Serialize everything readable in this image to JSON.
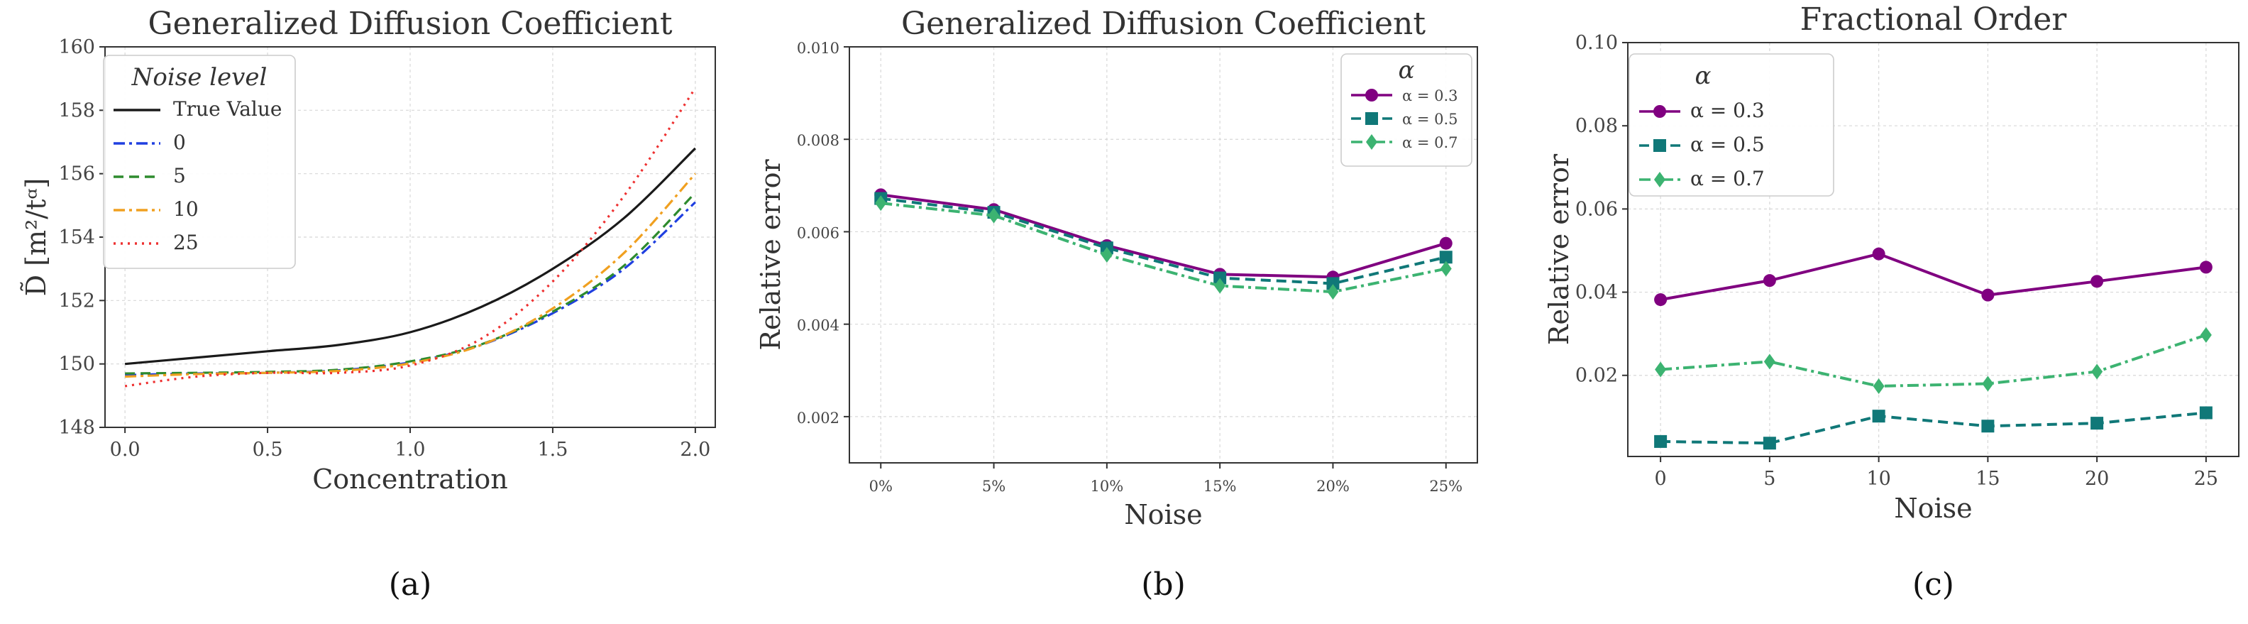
{
  "chart_data": [
    {
      "type": "line",
      "panel_label": "(a)",
      "title": "Generalized Diffusion Coefficient",
      "xlabel": "Concentration",
      "ylabel": "D̃ [m²/tᵅ]",
      "xlim": [
        -0.07,
        2.07
      ],
      "ylim": [
        148,
        160
      ],
      "xticks": [
        0.0,
        0.5,
        1.0,
        1.5,
        2.0
      ],
      "xtick_labels": [
        "0.0",
        "0.5",
        "1.0",
        "1.5",
        "2.0"
      ],
      "yticks": [
        148,
        150,
        152,
        154,
        156,
        158,
        160
      ],
      "ytick_labels": [
        "148",
        "150",
        "152",
        "154",
        "156",
        "158",
        "160"
      ],
      "grid": true,
      "legend": {
        "title": "Noise level",
        "position": "top-left"
      },
      "series": [
        {
          "name": "True Value",
          "color": "#1a1a1a",
          "dash": "solid",
          "x": [
            0.0,
            0.25,
            0.5,
            0.75,
            1.0,
            1.25,
            1.5,
            1.75,
            2.0
          ],
          "y": [
            150.0,
            150.2,
            150.4,
            150.6,
            151.0,
            151.8,
            153.0,
            154.6,
            156.8
          ]
        },
        {
          "name": "0",
          "color": "#1f3fe0",
          "dash": "dashdot",
          "x": [
            0.0,
            0.25,
            0.5,
            0.75,
            1.0,
            1.25,
            1.5,
            1.75,
            2.0
          ],
          "y": [
            149.65,
            149.7,
            149.72,
            149.8,
            150.05,
            150.6,
            151.6,
            153.0,
            155.1
          ]
        },
        {
          "name": "5",
          "color": "#2e8b2e",
          "dash": "dashed",
          "x": [
            0.0,
            0.25,
            0.5,
            0.75,
            1.0,
            1.25,
            1.5,
            1.75,
            2.0
          ],
          "y": [
            149.7,
            149.72,
            149.75,
            149.82,
            150.08,
            150.62,
            151.65,
            153.1,
            155.4
          ]
        },
        {
          "name": "10",
          "color": "#f0a020",
          "dash": "dashdot",
          "x": [
            0.0,
            0.25,
            0.5,
            0.75,
            1.0,
            1.25,
            1.5,
            1.75,
            2.0
          ],
          "y": [
            149.6,
            149.68,
            149.72,
            149.78,
            150.02,
            150.6,
            151.75,
            153.5,
            156.0
          ]
        },
        {
          "name": "25",
          "color": "#ee3030",
          "dash": "dotted",
          "x": [
            0.0,
            0.25,
            0.5,
            0.75,
            1.0,
            1.25,
            1.5,
            1.75,
            2.0
          ],
          "y": [
            149.3,
            149.6,
            149.72,
            149.72,
            149.95,
            150.8,
            152.6,
            155.3,
            158.7
          ]
        }
      ]
    },
    {
      "type": "line",
      "panel_label": "(b)",
      "title": "Generalized Diffusion Coefficient",
      "xlabel": "Noise",
      "ylabel": "Relative error",
      "categories": [
        "0%",
        "5%",
        "10%",
        "15%",
        "20%",
        "25%"
      ],
      "ylim": [
        0.001,
        0.01
      ],
      "yticks": [
        0.002,
        0.004,
        0.006,
        0.008,
        0.01
      ],
      "ytick_labels": [
        "0.002",
        "0.004",
        "0.006",
        "0.008",
        "0.010"
      ],
      "grid": true,
      "legend": {
        "title": "α",
        "position": "top-right"
      },
      "series": [
        {
          "name": "α = 0.3",
          "color": "#800080",
          "dash": "solid",
          "marker": "circle",
          "values": [
            0.0068,
            0.00648,
            0.0057,
            0.00508,
            0.00502,
            0.00575
          ]
        },
        {
          "name": "α = 0.5",
          "color": "#107878",
          "dash": "dashed",
          "marker": "square",
          "values": [
            0.00672,
            0.00642,
            0.00565,
            0.005,
            0.00488,
            0.00545
          ]
        },
        {
          "name": "α = 0.7",
          "color": "#3cb371",
          "dash": "dashdot",
          "marker": "diamond",
          "values": [
            0.00662,
            0.00635,
            0.0055,
            0.00483,
            0.0047,
            0.0052
          ]
        }
      ]
    },
    {
      "type": "line",
      "panel_label": "(c)",
      "title": "Fractional Order",
      "xlabel": "Noise",
      "ylabel": "Relative error",
      "x": [
        0,
        5,
        10,
        15,
        20,
        25
      ],
      "xlim": [
        -1.5,
        26.5
      ],
      "xticks": [
        0,
        5,
        10,
        15,
        20,
        25
      ],
      "xtick_labels": [
        "0",
        "5",
        "10",
        "15",
        "20",
        "25"
      ],
      "ylim": [
        0.0005,
        0.1
      ],
      "yticks": [
        0.02,
        0.04,
        0.06,
        0.08,
        0.1
      ],
      "ytick_labels": [
        "0.02",
        "0.04",
        "0.06",
        "0.08",
        "0.10"
      ],
      "grid": true,
      "legend": {
        "title": "α",
        "position": "top-left"
      },
      "series": [
        {
          "name": "α = 0.3",
          "color": "#800080",
          "dash": "solid",
          "marker": "circle",
          "values": [
            0.0382,
            0.0428,
            0.0492,
            0.0393,
            0.0426,
            0.046
          ]
        },
        {
          "name": "α = 0.5",
          "color": "#107878",
          "dash": "dashed",
          "marker": "square",
          "values": [
            0.0041,
            0.0037,
            0.0102,
            0.0078,
            0.0085,
            0.011
          ]
        },
        {
          "name": "α = 0.7",
          "color": "#3cb371",
          "dash": "dashdot",
          "marker": "diamond",
          "values": [
            0.0214,
            0.0233,
            0.0174,
            0.018,
            0.0209,
            0.0297
          ]
        }
      ]
    }
  ]
}
